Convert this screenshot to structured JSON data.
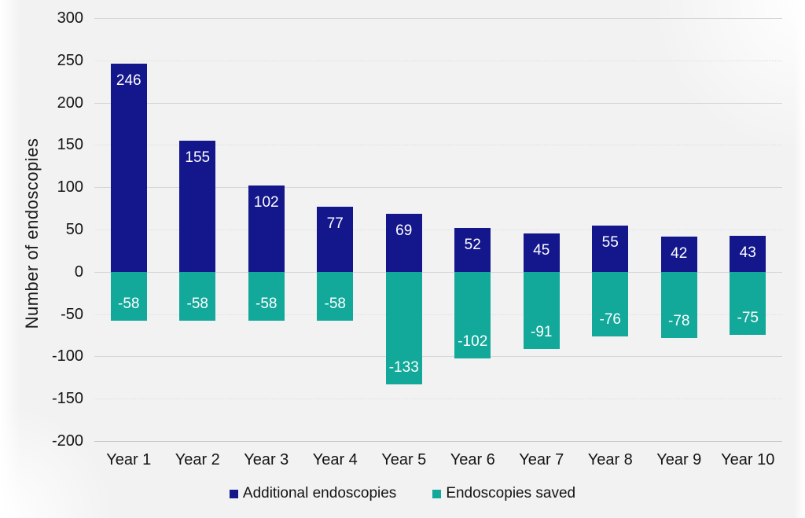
{
  "chart_data": {
    "type": "bar",
    "title": "",
    "xlabel": "",
    "ylabel": "Number of endoscopies",
    "categories": [
      "Year 1",
      "Year 2",
      "Year 3",
      "Year 4",
      "Year 5",
      "Year 6",
      "Year 7",
      "Year 8",
      "Year 9",
      "Year 10"
    ],
    "series": [
      {
        "name": "Additional endoscopies",
        "color": "#14168C",
        "values": [
          246,
          155,
          102,
          77,
          69,
          52,
          45,
          55,
          42,
          43
        ],
        "data_labels": [
          "246",
          "155",
          "102",
          "77",
          "69",
          "52",
          "45",
          "55",
          "42",
          "43"
        ]
      },
      {
        "name": "Endoscopies saved",
        "color": "#12A89A",
        "values": [
          -58,
          -58,
          -58,
          -58,
          -133,
          -102,
          -91,
          -76,
          -78,
          -75
        ],
        "data_labels": [
          "-58",
          "-58",
          "-58",
          "-58",
          "-133",
          "-102",
          "-91",
          "-76",
          "-78",
          "-75"
        ]
      }
    ],
    "ylim": [
      -200,
      300
    ],
    "yticks": [
      300,
      250,
      200,
      150,
      100,
      50,
      0,
      -50,
      -100,
      -150,
      -200
    ],
    "grid": "horizontal-only",
    "gridline_color": "#d6d6d6",
    "legend_position": "bottom-center",
    "data_label_color": "#ffffff"
  }
}
